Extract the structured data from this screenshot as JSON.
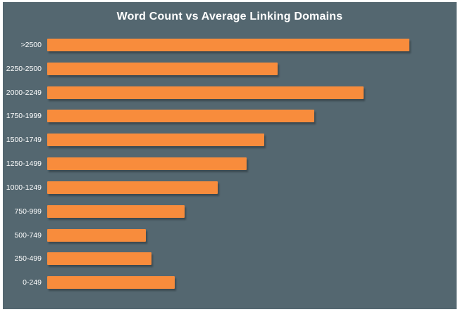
{
  "chart_data": {
    "type": "bar",
    "orientation": "horizontal",
    "title": "Word Count vs Average Linking Domains",
    "categories": [
      ">2500",
      "2250-2500",
      "2000-2249",
      "1750-1999",
      "1500-1749",
      "1250-1499",
      "1000-1249",
      "750-999",
      "500-749",
      "250-499",
      "0-249"
    ],
    "values_relative_pct_of_max": [
      100,
      63.6,
      87.4,
      73.7,
      59.9,
      55.1,
      47.1,
      37.9,
      27.2,
      28.8,
      35.2
    ],
    "xlabel": "",
    "ylabel": "",
    "axis_ticks_visible": false,
    "gridlines": false,
    "legend": "none",
    "colors": {
      "bar": "#F88C3C",
      "background": "#546770",
      "text": "#FFFFFF",
      "frame": "#FFFFFF"
    }
  }
}
